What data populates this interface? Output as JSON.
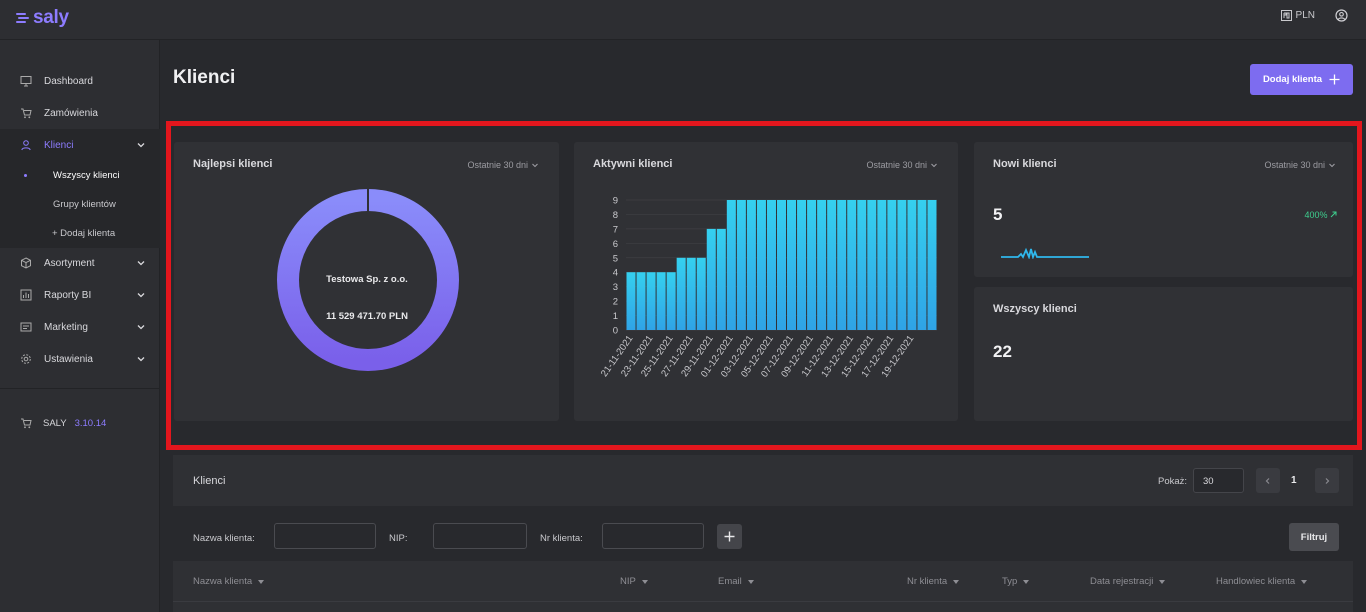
{
  "app": {
    "logo": "saly",
    "currency": "PLN"
  },
  "sidebar": {
    "items": [
      {
        "label": "Dashboard",
        "icon": "monitor-icon"
      },
      {
        "label": "Zamówienia",
        "icon": "cart-icon"
      },
      {
        "label": "Klienci",
        "icon": "user-icon"
      },
      {
        "label": "Asortyment",
        "icon": "box-icon"
      },
      {
        "label": "Raporty BI",
        "icon": "report-icon"
      },
      {
        "label": "Marketing",
        "icon": "marketing-icon"
      },
      {
        "label": "Ustawienia",
        "icon": "gear-icon"
      }
    ],
    "sub_items": [
      {
        "label": "Wszyscy klienci"
      },
      {
        "label": "Grupy klientów"
      },
      {
        "label": "+ Dodaj klienta"
      }
    ],
    "version_label": "SALY",
    "version": "3.10.14"
  },
  "header": {
    "title": "Klienci",
    "add_button": "Dodaj klienta"
  },
  "cards": {
    "best": {
      "title": "Najlepsi klienci",
      "range": "Ostatnie 30 dni",
      "client": "Testowa Sp. z o.o.",
      "amount": "11 529 471.70 PLN"
    },
    "active": {
      "title": "Aktywni klienci",
      "range": "Ostatnie 30 dni"
    },
    "new": {
      "title": "Nowi klienci",
      "range": "Ostatnie 30 dni",
      "value": "5",
      "change": "400%"
    },
    "all": {
      "title": "Wszyscy klienci",
      "value": "22"
    }
  },
  "chart_data": {
    "type": "bar",
    "title": "Aktywni klienci",
    "ylim": [
      0,
      9
    ],
    "yticks": [
      0,
      1,
      2,
      3,
      4,
      5,
      6,
      7,
      8,
      9
    ],
    "tick_labels": [
      "21-11-2021",
      "23-11-2021",
      "25-11-2021",
      "27-11-2021",
      "29-11-2021",
      "01-12-2021",
      "03-12-2021",
      "05-12-2021",
      "07-12-2021",
      "09-12-2021",
      "11-12-2021",
      "13-12-2021",
      "15-12-2021",
      "17-12-2021",
      "19-12-2021"
    ],
    "values": [
      4,
      4,
      4,
      4,
      4,
      5,
      5,
      5,
      7,
      7,
      9,
      9,
      9,
      9,
      9,
      9,
      9,
      9,
      9,
      9,
      9,
      9,
      9,
      9,
      9,
      9,
      9,
      9,
      9,
      9,
      9
    ],
    "color": "#2fa3e6"
  },
  "table": {
    "title": "Klienci",
    "show_label": "Pokaż:",
    "page_size": "30",
    "page": "1",
    "filters": {
      "name": "Nazwa klienta:",
      "nip": "NIP:",
      "number": "Nr klienta:",
      "button": "Filtruj"
    },
    "columns": [
      "Nazwa klienta",
      "NIP",
      "Email",
      "Nr klienta",
      "Typ",
      "Data rejestracji",
      "Handlowiec klienta"
    ]
  },
  "colors": {
    "accent": "#8d7cff",
    "positive": "#3ecf8e",
    "highlight": "#e3161d"
  }
}
